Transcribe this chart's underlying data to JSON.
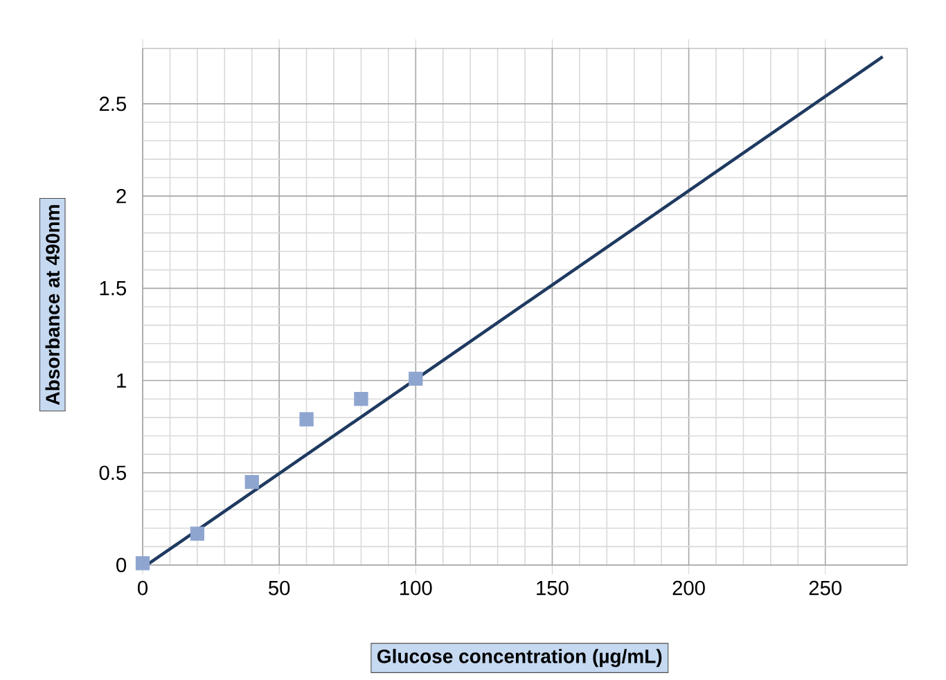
{
  "chart_data": {
    "type": "scatter",
    "xlabel": "Glucose concentration (µg/mL)",
    "ylabel": "Absorbance at 490nm",
    "xlim": [
      0,
      280
    ],
    "ylim": [
      0,
      2.8
    ],
    "xticks": [
      0,
      50,
      100,
      150,
      200,
      250
    ],
    "yticks": [
      0,
      0.5,
      1,
      1.5,
      2,
      2.5
    ],
    "grid": true,
    "marker": "square",
    "series": [
      {
        "color": "#8ea5d0",
        "x": [
          0,
          20,
          40,
          60,
          80,
          100
        ],
        "values": [
          0.01,
          0.17,
          0.45,
          0.79,
          0.9,
          1.01
        ]
      },
      {
        "type": "line",
        "marker": "none",
        "color": "#1f3a60",
        "x": [
          1.5,
          271
        ],
        "values": [
          0,
          2.755
        ]
      }
    ]
  }
}
